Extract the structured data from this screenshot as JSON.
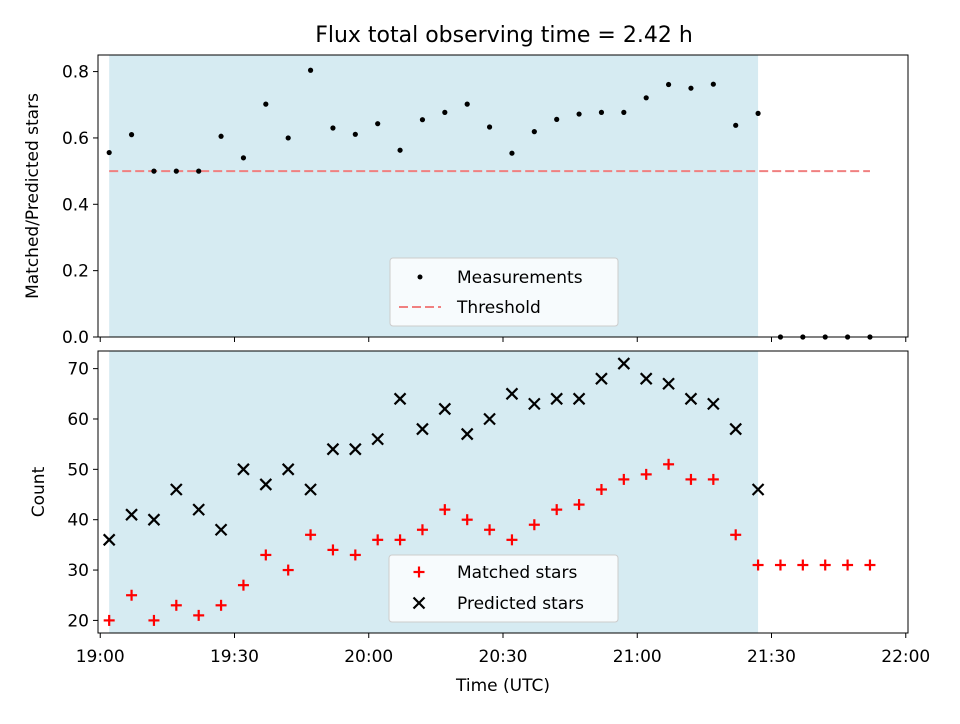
{
  "title": "Flux total observing time = 2.42 h",
  "colors": {
    "band": "#add8e6",
    "threshold": "#f08080",
    "measurement": "#000000",
    "matched": "#ff0000",
    "predicted": "#000000"
  },
  "chart_data": [
    {
      "type": "scatter",
      "ylabel": "Matched/Predicted stars",
      "ylim": [
        0,
        0.85
      ],
      "yticks": [
        "0.0",
        "0.2",
        "0.4",
        "0.6",
        "0.8"
      ],
      "shaded_interval": [
        "19:02",
        "21:27"
      ],
      "legend": {
        "placement": "lower center",
        "entries": [
          "Measurements",
          "Threshold"
        ]
      },
      "threshold": {
        "name": "Threshold",
        "value": 0.5,
        "x_range": [
          "19:02",
          "21:52"
        ],
        "style": "dashed"
      },
      "series": [
        {
          "name": "Measurements",
          "x": [
            "19:02",
            "19:07",
            "19:12",
            "19:17",
            "19:22",
            "19:27",
            "19:32",
            "19:37",
            "19:42",
            "19:47",
            "19:52",
            "19:57",
            "20:02",
            "20:07",
            "20:12",
            "20:17",
            "20:22",
            "20:27",
            "20:32",
            "20:37",
            "20:42",
            "20:47",
            "20:52",
            "20:57",
            "21:02",
            "21:07",
            "21:12",
            "21:17",
            "21:22",
            "21:27",
            "21:32",
            "21:37",
            "21:42",
            "21:47",
            "21:52"
          ],
          "y": [
            0.556,
            0.61,
            0.5,
            0.5,
            0.5,
            0.605,
            0.54,
            0.702,
            0.6,
            0.804,
            0.63,
            0.611,
            0.643,
            0.563,
            0.655,
            0.677,
            0.702,
            0.633,
            0.554,
            0.619,
            0.656,
            0.672,
            0.677,
            0.677,
            0.721,
            0.761,
            0.75,
            0.762,
            0.638,
            0.674,
            0,
            0,
            0,
            0,
            0
          ]
        }
      ]
    },
    {
      "type": "scatter",
      "ylabel": "Count",
      "xlabel": "Time (UTC)",
      "ylim": [
        17.5,
        73.5
      ],
      "yticks": [
        "20",
        "30",
        "40",
        "50",
        "60",
        "70"
      ],
      "xticks": [
        "19:00",
        "19:30",
        "20:00",
        "20:30",
        "21:00",
        "21:30",
        "22:00"
      ],
      "shaded_interval": [
        "19:02",
        "21:27"
      ],
      "legend": {
        "placement": "lower center",
        "entries": [
          "Matched stars",
          "Predicted stars"
        ]
      },
      "series": [
        {
          "name": "Matched stars",
          "marker": "plus",
          "x": [
            "19:02",
            "19:07",
            "19:12",
            "19:17",
            "19:22",
            "19:27",
            "19:32",
            "19:37",
            "19:42",
            "19:47",
            "19:52",
            "19:57",
            "20:02",
            "20:07",
            "20:12",
            "20:17",
            "20:22",
            "20:27",
            "20:32",
            "20:37",
            "20:42",
            "20:47",
            "20:52",
            "20:57",
            "21:02",
            "21:07",
            "21:12",
            "21:17",
            "21:22",
            "21:27",
            "21:32",
            "21:37",
            "21:42",
            "21:47",
            "21:52"
          ],
          "y": [
            20,
            25,
            20,
            23,
            21,
            23,
            27,
            33,
            30,
            37,
            34,
            33,
            36,
            36,
            38,
            42,
            40,
            38,
            36,
            39,
            42,
            43,
            46,
            48,
            49,
            51,
            48,
            48,
            37,
            31,
            31,
            31,
            31,
            31,
            31
          ]
        },
        {
          "name": "Predicted stars",
          "marker": "x",
          "x": [
            "19:02",
            "19:07",
            "19:12",
            "19:17",
            "19:22",
            "19:27",
            "19:32",
            "19:37",
            "19:42",
            "19:47",
            "19:52",
            "19:57",
            "20:02",
            "20:07",
            "20:12",
            "20:17",
            "20:22",
            "20:27",
            "20:32",
            "20:37",
            "20:42",
            "20:47",
            "20:52",
            "20:57",
            "21:02",
            "21:07",
            "21:12",
            "21:17",
            "21:22",
            "21:27"
          ],
          "y": [
            36,
            41,
            40,
            46,
            42,
            38,
            50,
            47,
            50,
            46,
            54,
            54,
            56,
            64,
            58,
            62,
            57,
            60,
            65,
            63,
            64,
            64,
            68,
            71,
            68,
            67,
            64,
            63,
            58,
            46
          ]
        }
      ]
    }
  ]
}
